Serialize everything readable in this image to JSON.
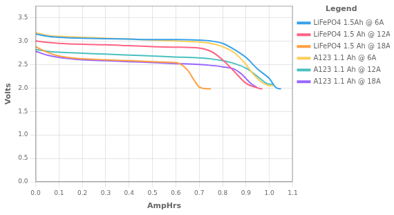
{
  "chart_data": {
    "type": "line",
    "xlabel": "AmpHrs",
    "ylabel": "Volts",
    "legend_title": "Legend",
    "legend": "right",
    "grid": true,
    "xlim": [
      0.0,
      1.1
    ],
    "ylim": [
      0.0,
      3.75
    ],
    "xticks": [
      {
        "value": 0.0,
        "label": "0.0"
      },
      0.1,
      0.2,
      0.3,
      0.4,
      0.5,
      0.6,
      0.7,
      0.8,
      0.9,
      {
        "value": 1.0,
        "label": "1.0"
      },
      1.1
    ],
    "yticks": [
      {
        "value": 0.0,
        "label": "0.0"
      },
      0.5,
      {
        "value": 1.0,
        "label": "1.0"
      },
      1.5,
      {
        "value": 2.0,
        "label": "2.0"
      },
      2.5,
      {
        "value": 3.0,
        "label": "3.0"
      },
      3.5
    ],
    "series": [
      {
        "name": "LiFePO4 1.5Ah @ 6A",
        "x": [
          0.0,
          0.05,
          0.1,
          0.2,
          0.3,
          0.4,
          0.5,
          0.6,
          0.7,
          0.75,
          0.8,
          0.85,
          0.9,
          0.95,
          1.0,
          1.03,
          1.05
        ],
        "values": [
          3.15,
          3.1,
          3.08,
          3.06,
          3.05,
          3.04,
          3.03,
          3.03,
          3.02,
          3.0,
          2.95,
          2.82,
          2.65,
          2.4,
          2.2,
          2.0,
          1.98
        ]
      },
      {
        "name": "LiFePO4 1.5 Ah @ 12A",
        "x": [
          0.0,
          0.05,
          0.1,
          0.2,
          0.3,
          0.4,
          0.5,
          0.6,
          0.7,
          0.75,
          0.8,
          0.85,
          0.9,
          0.95,
          0.97
        ],
        "values": [
          3.0,
          2.97,
          2.95,
          2.93,
          2.92,
          2.9,
          2.88,
          2.87,
          2.85,
          2.78,
          2.6,
          2.35,
          2.1,
          2.0,
          1.98
        ]
      },
      {
        "name": "LiFePO4 1.5 Ah @ 18A",
        "x": [
          0.0,
          0.05,
          0.1,
          0.2,
          0.3,
          0.4,
          0.5,
          0.55,
          0.6,
          0.65,
          0.68,
          0.7,
          0.72,
          0.75
        ],
        "values": [
          2.88,
          2.76,
          2.68,
          2.62,
          2.6,
          2.58,
          2.56,
          2.55,
          2.54,
          2.38,
          2.15,
          2.02,
          1.99,
          1.98
        ]
      },
      {
        "name": "A123 1.1 Ah @ 6A",
        "x": [
          0.0,
          0.05,
          0.1,
          0.2,
          0.3,
          0.4,
          0.5,
          0.6,
          0.7,
          0.75,
          0.8,
          0.85,
          0.9,
          0.93,
          0.96,
          1.0,
          1.02
        ],
        "values": [
          3.18,
          3.12,
          3.1,
          3.08,
          3.06,
          3.04,
          3.02,
          3.0,
          2.98,
          2.95,
          2.88,
          2.75,
          2.5,
          2.3,
          2.15,
          2.05,
          2.05
        ]
      },
      {
        "name": "A123 1.1 Ah @ 12A",
        "x": [
          0.0,
          0.05,
          0.1,
          0.2,
          0.3,
          0.4,
          0.5,
          0.6,
          0.7,
          0.75,
          0.8,
          0.85,
          0.9,
          0.93,
          0.96,
          1.0,
          1.02
        ],
        "values": [
          2.82,
          2.78,
          2.76,
          2.74,
          2.72,
          2.7,
          2.68,
          2.66,
          2.64,
          2.62,
          2.58,
          2.52,
          2.42,
          2.32,
          2.2,
          2.08,
          2.08
        ]
      },
      {
        "name": "A123 1.1 Ah @ 18A",
        "x": [
          0.0,
          0.05,
          0.1,
          0.2,
          0.3,
          0.4,
          0.5,
          0.6,
          0.7,
          0.75,
          0.8,
          0.85,
          0.88,
          0.9,
          0.92,
          0.95
        ],
        "values": [
          2.78,
          2.7,
          2.65,
          2.6,
          2.58,
          2.56,
          2.54,
          2.52,
          2.5,
          2.48,
          2.45,
          2.4,
          2.3,
          2.2,
          2.1,
          2.0
        ]
      }
    ]
  }
}
